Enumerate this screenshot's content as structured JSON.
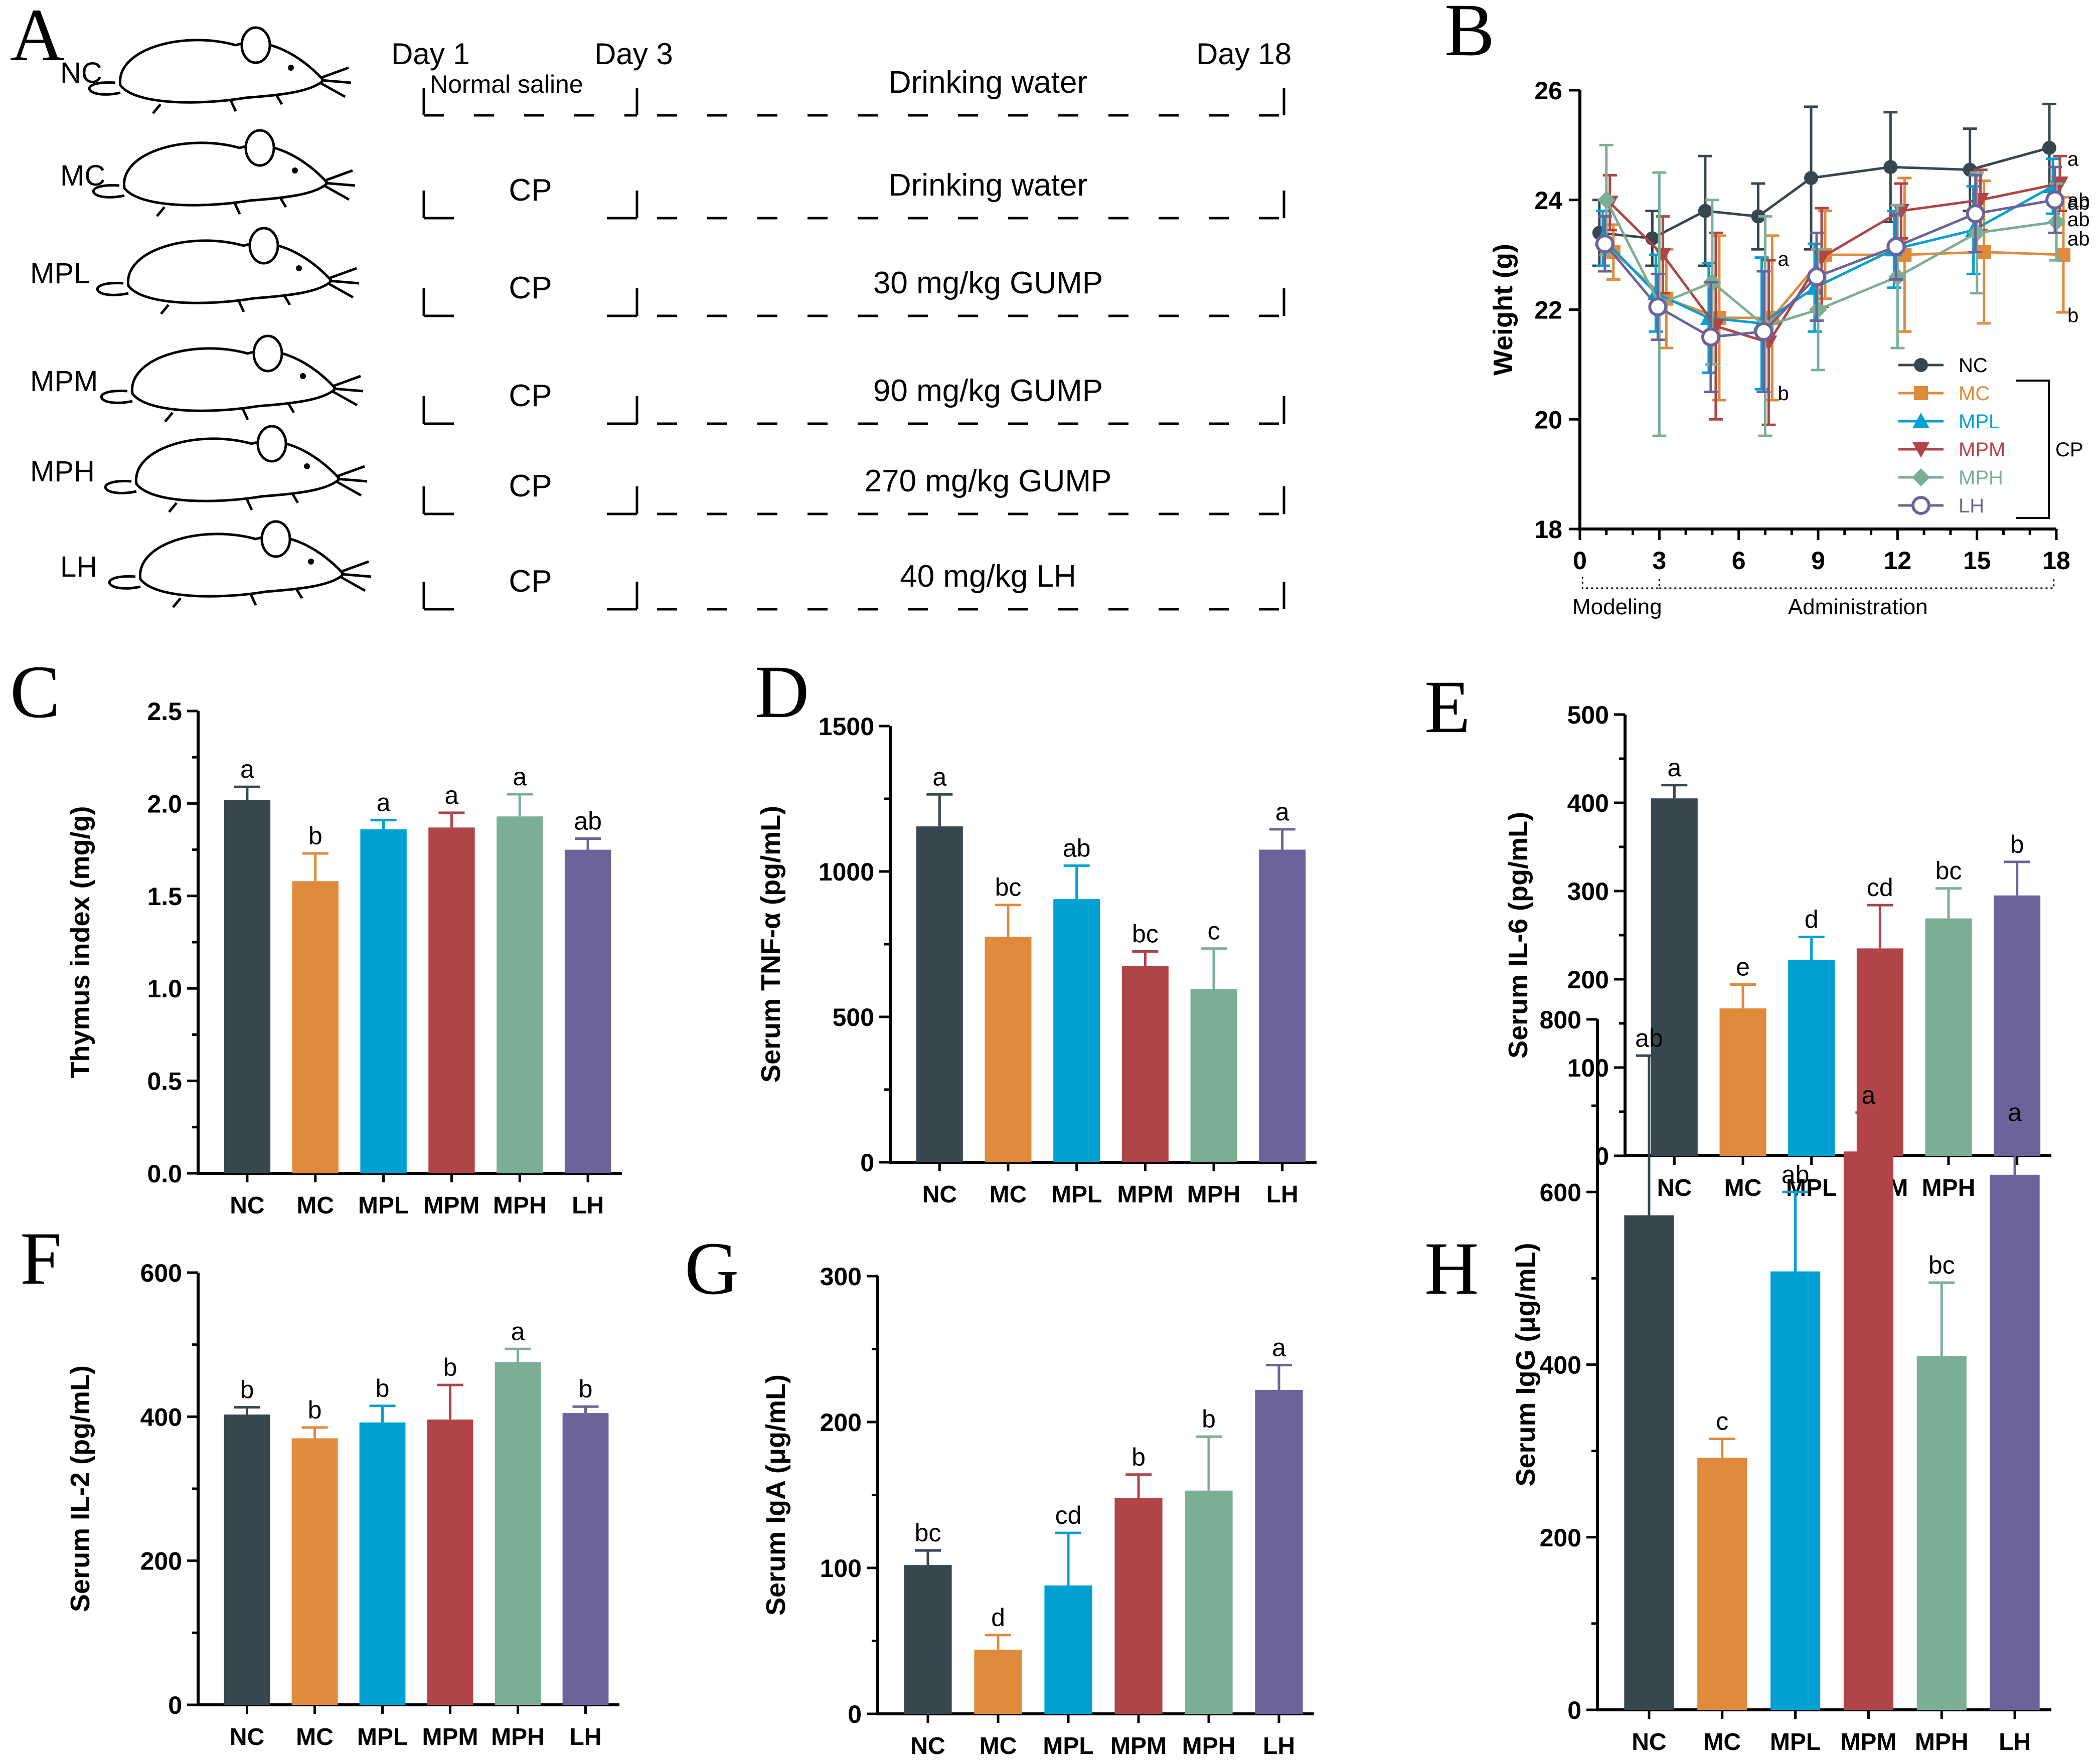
{
  "colors": {
    "NC": "#37474f",
    "MC": "#e08a3c",
    "MPL": "#00a0d2",
    "MPM": "#b04446",
    "MPH": "#7aaf95",
    "LH": "#6b649a"
  },
  "panel_letters": [
    "A",
    "B",
    "C",
    "D",
    "E",
    "F",
    "G",
    "H"
  ],
  "scheme": {
    "days": [
      "Day 1",
      "Day 3",
      "Day 18"
    ],
    "normal_saline": "Normal saline",
    "rows": [
      {
        "group": "NC",
        "modeling": "",
        "treatment": "Drinking water"
      },
      {
        "group": "MC",
        "modeling": "CP",
        "treatment": "Drinking water"
      },
      {
        "group": "MPL",
        "modeling": "CP",
        "treatment": "30 mg/kg GUMP"
      },
      {
        "group": "MPM",
        "modeling": "CP",
        "treatment": "90 mg/kg GUMP"
      },
      {
        "group": "MPH",
        "modeling": "CP",
        "treatment": "270 mg/kg GUMP"
      },
      {
        "group": "LH",
        "modeling": "CP",
        "treatment": "40 mg/kg LH"
      }
    ]
  },
  "chart_data": [
    {
      "id": "B",
      "type": "line",
      "ylabel": "Weight (g)",
      "xlabel": "",
      "x": [
        1,
        3,
        5,
        7,
        9,
        12,
        15,
        18
      ],
      "xticks": [
        0,
        3,
        6,
        9,
        12,
        15,
        18
      ],
      "yticks": [
        18,
        20,
        22,
        24,
        26
      ],
      "xlim": [
        0,
        18
      ],
      "ylim": [
        18,
        26
      ],
      "phase_labels": [
        "Modeling",
        "Administration"
      ],
      "cp_label": "CP",
      "series": [
        {
          "name": "NC",
          "marker": "circle",
          "values": [
            23.4,
            23.3,
            23.8,
            23.7,
            24.4,
            24.6,
            24.55,
            24.95
          ],
          "errors": [
            0.6,
            0.5,
            1.0,
            0.6,
            1.3,
            1.0,
            0.75,
            0.8
          ],
          "end_label": "a"
        },
        {
          "name": "MC",
          "marker": "square",
          "values": [
            23.05,
            22.2,
            21.85,
            21.85,
            23.0,
            23.0,
            23.05,
            23.0
          ],
          "errors": [
            0.5,
            0.9,
            1.5,
            1.5,
            0.8,
            1.4,
            1.3,
            1.05
          ],
          "end_label": "b"
        },
        {
          "name": "MPL",
          "marker": "triangle",
          "values": [
            23.3,
            22.3,
            21.85,
            21.75,
            22.4,
            23.1,
            23.45,
            24.25
          ],
          "errors": [
            0.5,
            0.7,
            1.0,
            1.2,
            0.8,
            0.7,
            0.8,
            0.5
          ],
          "end_label": "ab"
        },
        {
          "name": "MPM",
          "marker": "triangle-down",
          "values": [
            23.95,
            23.0,
            21.7,
            21.4,
            22.95,
            23.8,
            24.0,
            24.3
          ],
          "errors": [
            0.5,
            0.7,
            1.7,
            1.5,
            0.9,
            0.5,
            0.55,
            0.5
          ],
          "end_label": "ab"
        },
        {
          "name": "MPH",
          "marker": "diamond",
          "values": [
            24.0,
            22.1,
            22.5,
            21.7,
            22.0,
            22.6,
            23.4,
            23.6
          ],
          "errors": [
            1.0,
            2.4,
            1.5,
            2.0,
            1.1,
            1.3,
            1.1,
            0.7
          ],
          "end_label": "ab"
        },
        {
          "name": "LH",
          "marker": "open-circle",
          "values": [
            23.2,
            22.05,
            21.5,
            21.6,
            22.6,
            23.15,
            23.75,
            24.0
          ],
          "errors": [
            0.5,
            0.6,
            1.0,
            1.1,
            0.8,
            0.6,
            0.7,
            0.6
          ],
          "end_label": "ab"
        }
      ],
      "annotations": [
        {
          "x": 7,
          "y": 22.8,
          "text": "a"
        },
        {
          "x": 7,
          "y": 20.35,
          "text": "b"
        }
      ]
    },
    {
      "id": "C",
      "type": "bar",
      "ylabel": "Thymus index (mg/g)",
      "categories": [
        "NC",
        "MC",
        "MPL",
        "MPM",
        "MPH",
        "LH"
      ],
      "values": [
        2.02,
        1.58,
        1.86,
        1.87,
        1.93,
        1.75
      ],
      "errors": [
        0.07,
        0.15,
        0.05,
        0.08,
        0.12,
        0.06
      ],
      "sig_labels": [
        "a",
        "b",
        "a",
        "a",
        "a",
        "ab"
      ],
      "ylim": [
        0,
        2.5
      ],
      "yticks": [
        "0.0",
        "0.5",
        "1.0",
        "1.5",
        "2.0",
        "2.5"
      ]
    },
    {
      "id": "D",
      "type": "bar",
      "ylabel": "Serum TNF-α (pg/mL)",
      "categories": [
        "NC",
        "MC",
        "MPL",
        "MPM",
        "MPH",
        "LH"
      ],
      "values": [
        1155,
        775,
        905,
        675,
        595,
        1075
      ],
      "errors": [
        110,
        110,
        115,
        50,
        140,
        70
      ],
      "sig_labels": [
        "a",
        "bc",
        "ab",
        "bc",
        "c",
        "a"
      ],
      "ylim": [
        0,
        1500
      ],
      "yticks": [
        "0",
        "500",
        "1000",
        "1500"
      ]
    },
    {
      "id": "E",
      "type": "bar",
      "ylabel": "Serum IL-6 (pg/mL)",
      "categories": [
        "NC",
        "MC",
        "MPL",
        "MPM",
        "MPH",
        "LH"
      ],
      "values": [
        405,
        167,
        222,
        235,
        269,
        295
      ],
      "errors": [
        15,
        27,
        26,
        49,
        34,
        38
      ],
      "sig_labels": [
        "a",
        "e",
        "d",
        "cd",
        "bc",
        "b"
      ],
      "ylim": [
        0,
        500
      ],
      "yticks": [
        "0",
        "100",
        "200",
        "300",
        "400",
        "500"
      ]
    },
    {
      "id": "F",
      "type": "bar",
      "ylabel": "Serum IL-2 (pg/mL)",
      "categories": [
        "NC",
        "MC",
        "MPL",
        "MPM",
        "MPH",
        "LH"
      ],
      "values": [
        403,
        370,
        392,
        396,
        476,
        405
      ],
      "errors": [
        10,
        15,
        23,
        48,
        18,
        9
      ],
      "sig_labels": [
        "b",
        "b",
        "b",
        "b",
        "a",
        "b"
      ],
      "ylim": [
        0,
        600
      ],
      "yticks": [
        "0",
        "200",
        "400",
        "600"
      ]
    },
    {
      "id": "G",
      "type": "bar",
      "ylabel": "Serum IgA (μg/mL)",
      "categories": [
        "NC",
        "MC",
        "MPL",
        "MPM",
        "MPH",
        "LH"
      ],
      "values": [
        102,
        44,
        88,
        148,
        153,
        222
      ],
      "errors": [
        10,
        10,
        36,
        16,
        37,
        17
      ],
      "sig_labels": [
        "bc",
        "d",
        "cd",
        "b",
        "b",
        "a"
      ],
      "ylim": [
        0,
        300
      ],
      "yticks": [
        "0",
        "100",
        "200",
        "300"
      ]
    },
    {
      "id": "H",
      "type": "bar",
      "ylabel": "Serum IgG (μg/mL)",
      "categories": [
        "NC",
        "MC",
        "MPL",
        "MPM",
        "MPH",
        "LH"
      ],
      "values": [
        573,
        292,
        508,
        647,
        410,
        620
      ],
      "errors": [
        185,
        22,
        92,
        45,
        85,
        52
      ],
      "sig_labels": [
        "ab",
        "c",
        "ab",
        "a",
        "bc",
        "a"
      ],
      "ylim": [
        0,
        800
      ],
      "yticks": [
        "0",
        "200",
        "400",
        "600",
        "800"
      ]
    }
  ]
}
